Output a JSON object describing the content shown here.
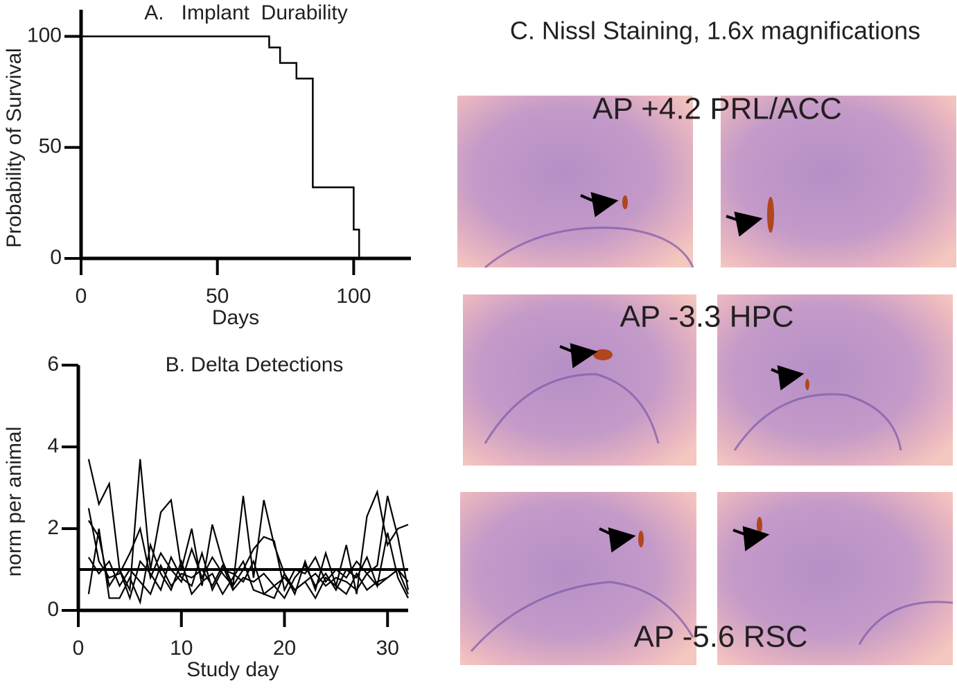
{
  "chart_data": [
    {
      "type": "step",
      "title": "A.   Implant  Durability",
      "x_label": "Days",
      "y_label": "Probability of Survival",
      "x": [
        0,
        69,
        73,
        79,
        85,
        100,
        102
      ],
      "values": [
        100,
        95,
        88,
        81,
        32,
        13,
        0
      ],
      "color": "#000000",
      "xlim": [
        0,
        121
      ],
      "xticks": [
        0,
        50,
        100
      ],
      "ylim": [
        0,
        112
      ],
      "yticks": [
        0,
        50,
        100
      ]
    },
    {
      "type": "line",
      "title": "B. Delta Detections",
      "x_label": "Study day",
      "y_label": "norm per animal",
      "x": [
        1,
        2,
        3,
        4,
        5,
        6,
        7,
        8,
        9,
        10,
        11,
        12,
        13,
        14,
        15,
        16,
        17,
        18,
        19,
        20,
        21,
        22,
        23,
        24,
        25,
        26,
        27,
        28,
        29,
        30,
        31,
        32
      ],
      "series": [
        {
          "color": "#000000",
          "values": [
            3.7,
            2.6,
            3.1,
            1.0,
            0.5,
            3.7,
            1.0,
            2.4,
            2.7,
            1.0,
            2.0,
            0.6,
            2.1,
            1.2,
            0.6,
            2.8,
            0.8,
            2.7,
            1.6,
            0.9,
            0.4,
            1.2,
            0.5,
            1.4,
            0.6,
            1.6,
            0.4,
            2.3,
            2.9,
            1.6,
            2.0,
            2.1
          ]
        },
        {
          "color": "#000000",
          "values": [
            2.5,
            1.2,
            0.8,
            0.9,
            1.4,
            2.0,
            0.8,
            1.4,
            1.0,
            0.7,
            1.5,
            0.8,
            1.3,
            0.9,
            0.6,
            1.0,
            1.5,
            1.8,
            1.7,
            0.5,
            1.0,
            0.9,
            1.3,
            0.7,
            1.0,
            0.8,
            1.2,
            0.9,
            1.1,
            2.8,
            1.8,
            0.5
          ]
        },
        {
          "color": "#000000",
          "values": [
            2.2,
            1.8,
            0.6,
            1.0,
            0.3,
            1.2,
            0.9,
            0.5,
            1.3,
            0.8,
            0.6,
            1.4,
            0.5,
            1.0,
            0.9,
            0.7,
            1.2,
            0.4,
            0.6,
            0.3,
            0.8,
            1.1,
            0.6,
            0.9,
            0.5,
            1.0,
            0.8,
            1.3,
            0.6,
            1.9,
            0.8,
            0.3
          ]
        },
        {
          "color": "#000000",
          "values": [
            0.4,
            2.0,
            0.3,
            0.3,
            0.8,
            0.2,
            1.6,
            0.9,
            0.5,
            1.2,
            0.4,
            0.7,
            0.9,
            0.4,
            0.8,
            1.2,
            0.5,
            0.4,
            0.3,
            0.9,
            0.5,
            0.7,
            0.3,
            0.8,
            0.6,
            0.4,
            0.9,
            0.5,
            0.7,
            0.8,
            1.0,
            0.4
          ]
        },
        {
          "color": "#000000",
          "values": [
            1.3,
            0.9,
            1.2,
            0.6,
            1.0,
            0.7,
            0.4,
            1.1,
            0.6,
            0.9,
            0.8,
            1.0,
            0.6,
            1.1,
            0.5,
            0.8,
            0.7,
            0.9,
            0.6,
            0.8,
            0.5,
            0.7,
            0.9,
            0.6,
            0.8,
            0.7,
            0.5,
            0.9,
            0.6,
            0.8,
            1.0,
            0.7
          ]
        }
      ],
      "hline": 1,
      "xlim": [
        0,
        32
      ],
      "xticks": [
        0,
        10,
        20,
        30
      ],
      "ylim": [
        0,
        6
      ],
      "yticks": [
        0,
        2,
        4,
        6
      ]
    }
  ],
  "panel_c": {
    "title": "C. Nissl Staining, 1.6x magnifications",
    "labels": [
      "AP +4.2 PRL/ACC",
      "AP -3.3 HPC",
      "AP -5.6 RSC"
    ]
  }
}
